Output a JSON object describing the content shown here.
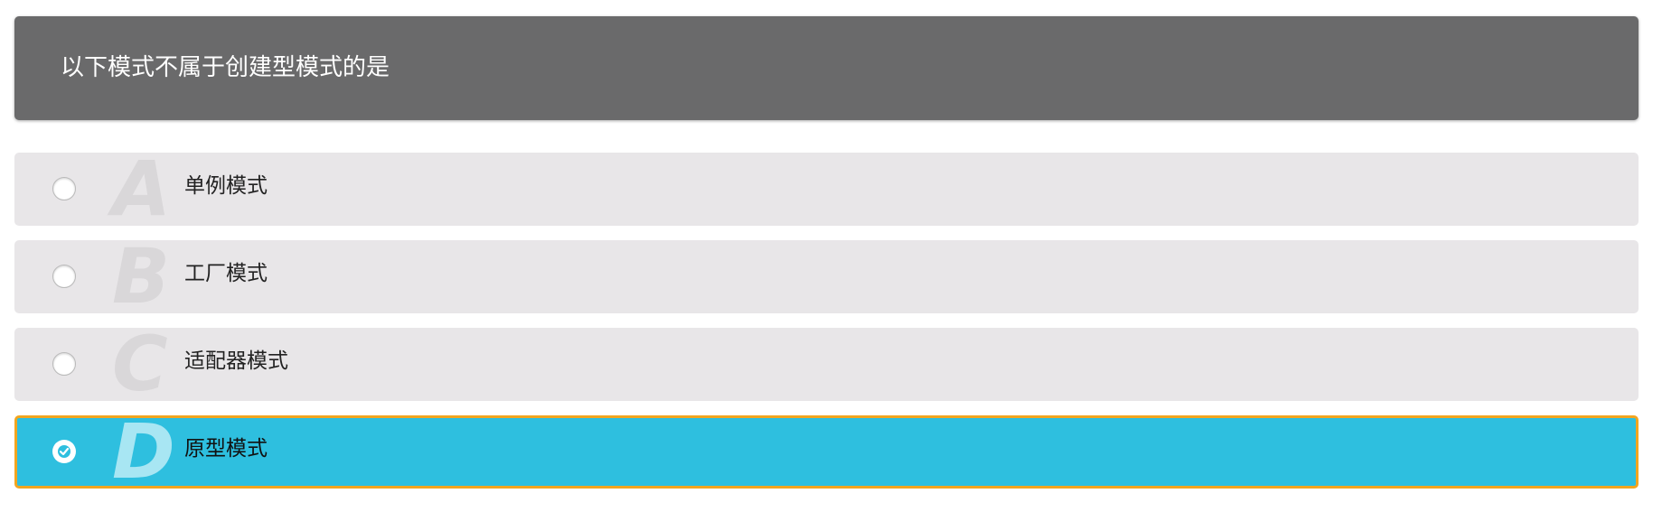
{
  "question": {
    "text": "以下模式不属于创建型模式的是"
  },
  "options": [
    {
      "letter": "A",
      "text": "单例模式",
      "selected": false
    },
    {
      "letter": "B",
      "text": "工厂模式",
      "selected": false
    },
    {
      "letter": "C",
      "text": "适配器模式",
      "selected": false
    },
    {
      "letter": "D",
      "text": "原型模式",
      "selected": true
    }
  ],
  "colors": {
    "question_bar": "#6a6a6b",
    "option_bg": "#e8e6e8",
    "selected_bg": "#2ebfdf",
    "selected_border": "#f2a51f"
  },
  "icons": {
    "radio_unchecked": "radio-empty-icon",
    "radio_checked": "checkmark-icon"
  }
}
